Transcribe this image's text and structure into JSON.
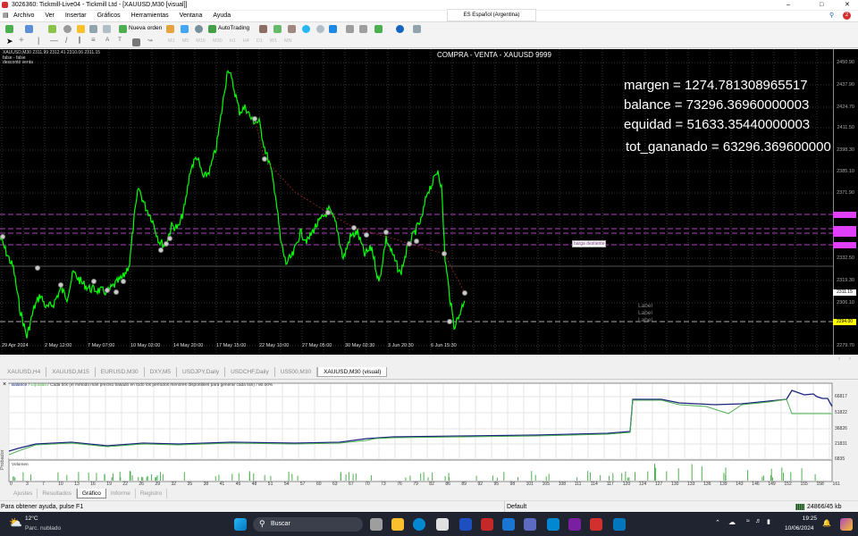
{
  "window": {
    "title": "3026360: Tickmill-Live04 - Tickmill Ltd - [XAUUSD,M30 [visual]]"
  },
  "menu": [
    "Archivo",
    "Ver",
    "Insertar",
    "Gráficos",
    "Herramientas",
    "Ventana",
    "Ayuda"
  ],
  "toolbar": {
    "new_order": "Nueva orden",
    "autotrading": "AutoTrading",
    "language": "ES Español (Argentina)",
    "notifications": "2",
    "timeframes": [
      "M1",
      "M5",
      "M15",
      "M30",
      "H1",
      "H4",
      "D1",
      "W1",
      "MN"
    ]
  },
  "chart": {
    "symbol_info": "XAUUSD,M30  2311.99 2312.41 2310.06 2311.15",
    "line2": "false - false",
    "line3": "descontó venta",
    "header": "COMPRA - VENTA - XAUUSD   9999",
    "margen": "margen = 1274.781308965517",
    "balance": "balance = 73296.36960000003",
    "equidad": "equidad = 51633.35440000003",
    "tot_ganado": "tot_gananado = 63296.369600000",
    "object_label": "barga destiente",
    "labels": [
      "Label",
      "Label",
      "Label"
    ],
    "price_axis": [
      "2450.90",
      "2437.90",
      "2424.70",
      "2411.50",
      "2398.30",
      "2385.10",
      "2371.90",
      "2332.50",
      "2319.30",
      "2306.10",
      "2279.70"
    ],
    "current_price": "2311.15",
    "yellow_price": "2294.00",
    "time_axis": [
      "29 Apr 2024",
      "2 May 12:00",
      "7 May 07:00",
      "10 May 02:00",
      "14 May 20:00",
      "17 May 15:00",
      "22 May 10:00",
      "27 May 05:00",
      "30 May 02:30",
      "3 Jun 20:30",
      "6 Jun 15:30"
    ],
    "colors": {
      "price": "#00ff00",
      "levels": "#ff00ff",
      "current": "#ffffff",
      "stop": "#ffff00"
    }
  },
  "symbol_tabs": [
    "XAUUSD,H4",
    "XAUUSD,M15",
    "EURUSD,M30",
    "DXY,M5",
    "USDJPY,Daily",
    "USDCHF,Daily",
    "US500,M30",
    "XAUUSD,M30 (visual)"
  ],
  "tester": {
    "legend_balance": "Balance",
    "legend_equity": "Equidad",
    "legend_rest": " / Cada tick (el método más preciso basado en todo los períodos menores disponibles para generar cada tick)  / 90.00%",
    "volume_label": "Volumen",
    "y_axis": [
      "66817",
      "51822",
      "36826",
      "21831",
      "6835"
    ],
    "x_axis": [
      "0",
      "3",
      "7",
      "10",
      "13",
      "16",
      "19",
      "22",
      "26",
      "29",
      "32",
      "35",
      "38",
      "41",
      "45",
      "48",
      "51",
      "54",
      "57",
      "60",
      "63",
      "67",
      "70",
      "73",
      "76",
      "79",
      "82",
      "86",
      "89",
      "92",
      "95",
      "98",
      "101",
      "105",
      "108",
      "111",
      "114",
      "117",
      "120",
      "124",
      "127",
      "130",
      "133",
      "136",
      "139",
      "143",
      "146",
      "149",
      "152",
      "155",
      "158",
      "161"
    ],
    "side_label": "Probador",
    "tabs": [
      "Ajustes",
      "Resultados",
      "Gráfico",
      "Informe",
      "Registro"
    ],
    "colors": {
      "balance": "#1a237e",
      "equity": "#4caf50"
    }
  },
  "status": {
    "help": "Para obtener ayuda, pulse F1",
    "profile": "Default",
    "traffic": "24866/45 kb"
  },
  "taskbar": {
    "temp": "12°C",
    "weather": "Parc. nublado",
    "search": "Buscar",
    "time": "19:25",
    "date": "10/06/2024"
  }
}
